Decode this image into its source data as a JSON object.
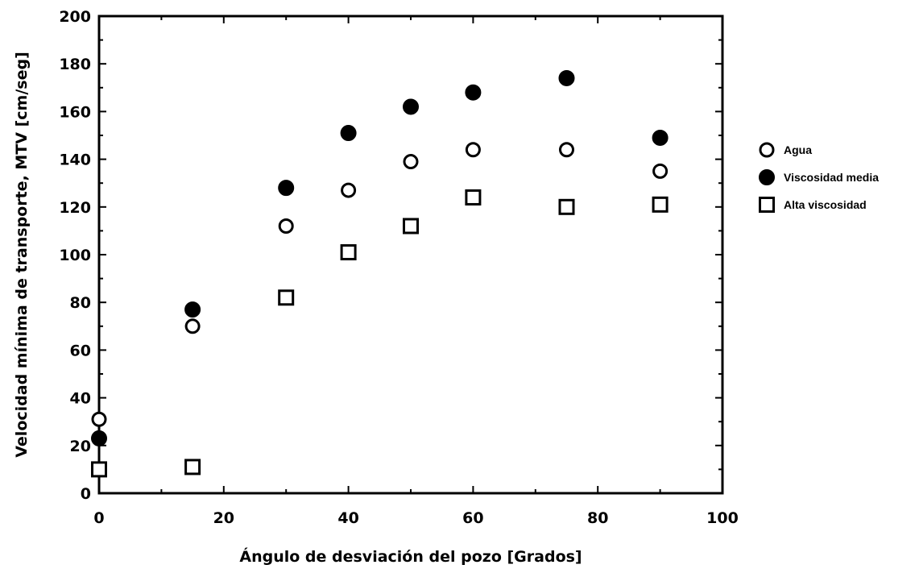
{
  "chart_data": {
    "type": "scatter",
    "xlabel": "Ángulo de desviación del pozo [Grados]",
    "ylabel": "Velocidad mínima de transporte, MTV  [cm/seg]",
    "xlim": [
      0,
      100
    ],
    "ylim": [
      0,
      200
    ],
    "x_ticks": [
      "0",
      "20",
      "40",
      "60",
      "80",
      "100"
    ],
    "y_ticks": [
      "0",
      "20",
      "40",
      "60",
      "80",
      "100",
      "120",
      "140",
      "160",
      "180",
      "200"
    ],
    "grid": false,
    "legend_position": "right",
    "series": [
      {
        "name": "Agua",
        "marker": "open-circle",
        "points": [
          {
            "x": 0,
            "y": 31
          },
          {
            "x": 15,
            "y": 70
          },
          {
            "x": 30,
            "y": 112
          },
          {
            "x": 40,
            "y": 127
          },
          {
            "x": 50,
            "y": 139
          },
          {
            "x": 60,
            "y": 144
          },
          {
            "x": 75,
            "y": 144
          },
          {
            "x": 90,
            "y": 135
          }
        ]
      },
      {
        "name": "Viscosidad media",
        "marker": "filled-circle",
        "points": [
          {
            "x": 0,
            "y": 23
          },
          {
            "x": 15,
            "y": 77
          },
          {
            "x": 30,
            "y": 128
          },
          {
            "x": 40,
            "y": 151
          },
          {
            "x": 50,
            "y": 162
          },
          {
            "x": 60,
            "y": 168
          },
          {
            "x": 75,
            "y": 174
          },
          {
            "x": 90,
            "y": 149
          }
        ]
      },
      {
        "name": "Alta viscosidad",
        "marker": "open-square",
        "points": [
          {
            "x": 0,
            "y": 10
          },
          {
            "x": 15,
            "y": 11
          },
          {
            "x": 30,
            "y": 82
          },
          {
            "x": 40,
            "y": 101
          },
          {
            "x": 50,
            "y": 112
          },
          {
            "x": 60,
            "y": 124
          },
          {
            "x": 75,
            "y": 120
          },
          {
            "x": 90,
            "y": 121
          }
        ]
      }
    ]
  }
}
